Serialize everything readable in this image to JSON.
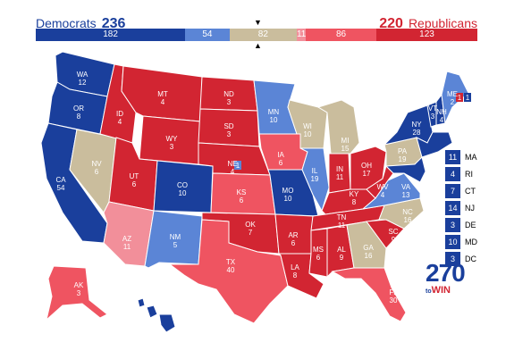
{
  "header": {
    "dem_label": "Democrats",
    "dem_total": "236",
    "rep_label": "Republicans",
    "rep_total": "220"
  },
  "bar": [
    {
      "label": "182",
      "value": 182,
      "color": "#1a3f9c"
    },
    {
      "label": "54",
      "value": 54,
      "color": "#5b85d6"
    },
    {
      "label": "82",
      "value": 82,
      "color": "#cabd9d"
    },
    {
      "label": "11",
      "value": 11,
      "color": "#f28f9a"
    },
    {
      "label": "86",
      "value": 86,
      "color": "#ef5461"
    },
    {
      "label": "123",
      "value": 123,
      "color": "#d22532"
    }
  ],
  "colors": {
    "safe_dem": "#1a3f9c",
    "likely_dem": "#5b85d6",
    "tossup": "#cabd9d",
    "lean_rep": "#f28f9a",
    "likely_rep": "#ef5461",
    "safe_rep": "#d22532"
  },
  "states": [
    {
      "abbr": "WA",
      "ev": "12",
      "cat": "safe_dem"
    },
    {
      "abbr": "OR",
      "ev": "8",
      "cat": "safe_dem"
    },
    {
      "abbr": "CA",
      "ev": "54",
      "cat": "safe_dem"
    },
    {
      "abbr": "NV",
      "ev": "6",
      "cat": "tossup"
    },
    {
      "abbr": "ID",
      "ev": "4",
      "cat": "safe_rep"
    },
    {
      "abbr": "MT",
      "ev": "4",
      "cat": "safe_rep"
    },
    {
      "abbr": "WY",
      "ev": "3",
      "cat": "safe_rep"
    },
    {
      "abbr": "UT",
      "ev": "6",
      "cat": "safe_rep"
    },
    {
      "abbr": "AZ",
      "ev": "11",
      "cat": "lean_rep"
    },
    {
      "abbr": "CO",
      "ev": "10",
      "cat": "safe_dem"
    },
    {
      "abbr": "NM",
      "ev": "5",
      "cat": "likely_dem"
    },
    {
      "abbr": "ND",
      "ev": "3",
      "cat": "safe_rep"
    },
    {
      "abbr": "SD",
      "ev": "3",
      "cat": "safe_rep"
    },
    {
      "abbr": "NE",
      "ev": "4",
      "cat": "safe_rep"
    },
    {
      "abbr": "KS",
      "ev": "6",
      "cat": "likely_rep"
    },
    {
      "abbr": "OK",
      "ev": "7",
      "cat": "safe_rep"
    },
    {
      "abbr": "TX",
      "ev": "40",
      "cat": "likely_rep"
    },
    {
      "abbr": "MN",
      "ev": "10",
      "cat": "likely_dem"
    },
    {
      "abbr": "IA",
      "ev": "6",
      "cat": "likely_rep"
    },
    {
      "abbr": "MO",
      "ev": "10",
      "cat": "safe_dem"
    },
    {
      "abbr": "AR",
      "ev": "6",
      "cat": "safe_rep"
    },
    {
      "abbr": "LA",
      "ev": "8",
      "cat": "safe_rep"
    },
    {
      "abbr": "WI",
      "ev": "10",
      "cat": "tossup"
    },
    {
      "abbr": "IL",
      "ev": "19",
      "cat": "likely_dem"
    },
    {
      "abbr": "MI",
      "ev": "15",
      "cat": "tossup"
    },
    {
      "abbr": "IN",
      "ev": "11",
      "cat": "safe_rep"
    },
    {
      "abbr": "OH",
      "ev": "17",
      "cat": "safe_rep"
    },
    {
      "abbr": "KY",
      "ev": "8",
      "cat": "safe_rep"
    },
    {
      "abbr": "TN",
      "ev": "11",
      "cat": "safe_rep"
    },
    {
      "abbr": "MS",
      "ev": "6",
      "cat": "safe_rep"
    },
    {
      "abbr": "AL",
      "ev": "9",
      "cat": "safe_rep"
    },
    {
      "abbr": "GA",
      "ev": "16",
      "cat": "tossup"
    },
    {
      "abbr": "FL",
      "ev": "30",
      "cat": "likely_rep"
    },
    {
      "abbr": "SC",
      "ev": "9",
      "cat": "safe_rep"
    },
    {
      "abbr": "NC",
      "ev": "16",
      "cat": "tossup"
    },
    {
      "abbr": "VA",
      "ev": "13",
      "cat": "likely_dem"
    },
    {
      "abbr": "WV",
      "ev": "4",
      "cat": "safe_rep"
    },
    {
      "abbr": "PA",
      "ev": "19",
      "cat": "tossup"
    },
    {
      "abbr": "NY",
      "ev": "28",
      "cat": "safe_dem"
    },
    {
      "abbr": "VT",
      "ev": "3",
      "cat": "safe_dem"
    },
    {
      "abbr": "NH",
      "ev": "4",
      "cat": "safe_dem"
    },
    {
      "abbr": "ME",
      "ev": "2",
      "cat": "likely_dem"
    },
    {
      "abbr": "AK",
      "ev": "3",
      "cat": "likely_rep"
    },
    {
      "abbr": "HI",
      "ev": "4",
      "cat": "safe_dem"
    }
  ],
  "split_labels": {
    "ne_d": "1",
    "me_r": "1",
    "me_d": "1"
  },
  "small_states": [
    {
      "ev": "11",
      "name": "MA"
    },
    {
      "ev": "4",
      "name": "RI"
    },
    {
      "ev": "7",
      "name": "CT"
    },
    {
      "ev": "14",
      "name": "NJ"
    },
    {
      "ev": "3",
      "name": "DE"
    },
    {
      "ev": "10",
      "name": "MD"
    },
    {
      "ev": "3",
      "name": "DC"
    }
  ],
  "logo": {
    "num": "270",
    "sub_to": "to",
    "sub_win": "WIN"
  }
}
